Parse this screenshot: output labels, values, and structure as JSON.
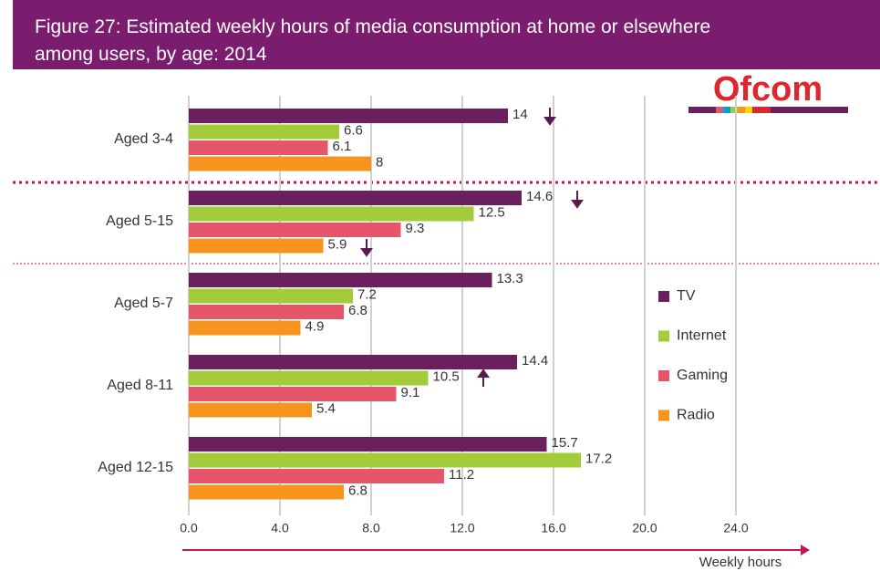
{
  "chart_data": {
    "type": "bar",
    "orientation": "horizontal",
    "title": [
      "Figure 27: Estimated weekly hours of media consumption at home or elsewhere",
      "among users, by age: 2014"
    ],
    "logo": "Ofcom",
    "categories": [
      "Aged 3-4",
      "Aged 5-15",
      "Aged 5-7",
      "Aged 8-11",
      "Aged 12-15"
    ],
    "series": [
      {
        "name": "TV",
        "color": "#6b1f5e",
        "values": [
          14,
          14.6,
          13.3,
          14.4,
          15.7
        ]
      },
      {
        "name": "Internet",
        "color": "#a3cc3a",
        "values": [
          6.6,
          12.5,
          7.2,
          10.5,
          17.2
        ]
      },
      {
        "name": "Gaming",
        "color": "#e5566a",
        "values": [
          6.1,
          9.3,
          6.8,
          9.1,
          11.2
        ]
      },
      {
        "name": "Radio",
        "color": "#f7941d",
        "values": [
          8,
          5.9,
          4.9,
          5.4,
          6.8
        ]
      }
    ],
    "xlabel": "Weekly hours",
    "xlim": [
      0,
      28
    ],
    "xticks": [
      {
        "value": 0,
        "label": "0.0"
      },
      {
        "value": 4,
        "label": "4.0"
      },
      {
        "value": 8,
        "label": "8.0"
      },
      {
        "value": 12,
        "label": "12.0"
      },
      {
        "value": 16,
        "label": "16.0"
      },
      {
        "value": 20,
        "label": "20.0"
      },
      {
        "value": 24,
        "label": "24.0"
      }
    ],
    "grid": true
  }
}
